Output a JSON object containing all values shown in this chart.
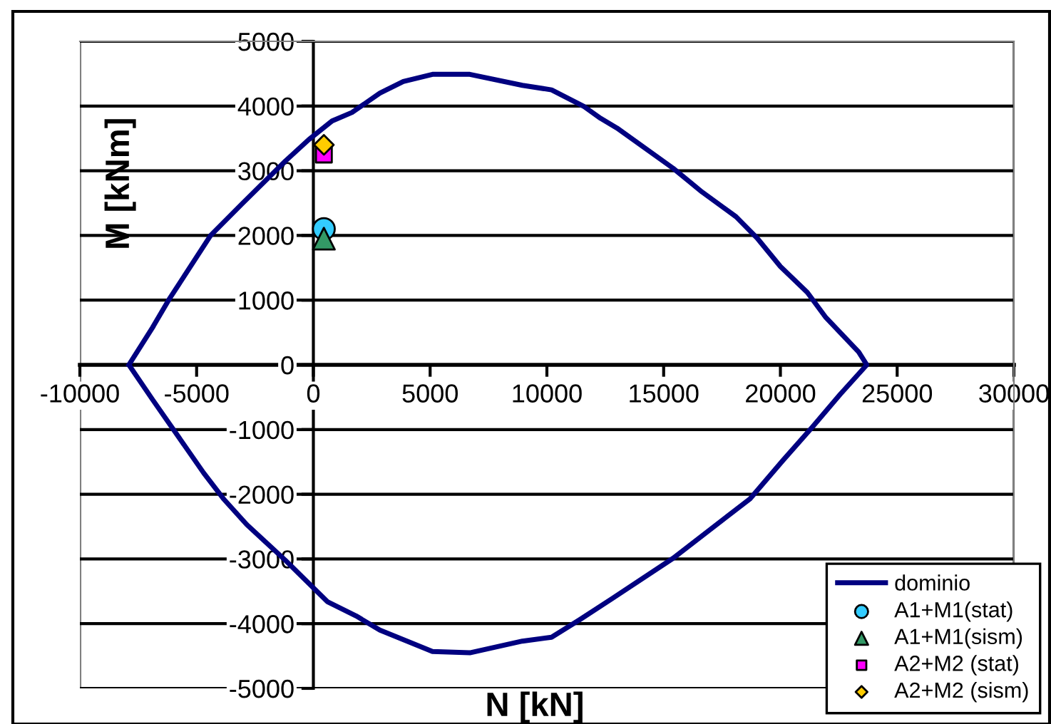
{
  "chart_data": {
    "type": "line",
    "xlabel": "N [kN]",
    "ylabel": "M [kNm]",
    "xlim": [
      -10000,
      30000
    ],
    "xticks": [
      -10000,
      -5000,
      0,
      5000,
      10000,
      15000,
      20000,
      25000,
      30000
    ],
    "ylim": [
      -5000,
      5000
    ],
    "yticks": [
      -5000,
      -4000,
      -3000,
      -2000,
      -1000,
      0,
      1000,
      2000,
      3000,
      4000,
      5000
    ],
    "grid": "y",
    "legend": "bottom right",
    "series": [
      {
        "name": "dominio",
        "color": "#000080",
        "marker": "none",
        "line_style": "solid",
        "x": [
          -7900,
          -6900,
          -6200,
          -4400,
          -3050,
          -1200,
          -200,
          800,
          1650,
          2850,
          3850,
          5100,
          6700,
          8950,
          10200,
          11600,
          12300,
          13000,
          15400,
          16650,
          18100,
          19000,
          20000,
          21150,
          21950,
          23350,
          23700,
          22550,
          21350,
          20100,
          18700,
          15400,
          12800,
          11400,
          10200,
          8950,
          6700,
          5100,
          2850,
          1830,
          600,
          -1200,
          -2850,
          -3850,
          -4700,
          -6900,
          -7900,
          -6900
        ],
        "values": [
          0,
          570,
          1000,
          2000,
          2490,
          3150,
          3480,
          3770,
          3900,
          4200,
          4380,
          4490,
          4490,
          4320,
          4250,
          3990,
          3810,
          3660,
          3040,
          2670,
          2290,
          1960,
          1520,
          1120,
          730,
          200,
          0,
          -460,
          -970,
          -1480,
          -2070,
          -2990,
          -3610,
          -3940,
          -4210,
          -4270,
          -4450,
          -4430,
          -4100,
          -3880,
          -3660,
          -3020,
          -2470,
          -2070,
          -1670,
          -530,
          0,
          570
        ]
      },
      {
        "name": "A1+M1(stat)",
        "type": "scatter",
        "color": "#33ccff",
        "marker": "circle",
        "x": [
          450
        ],
        "values": [
          2100
        ]
      },
      {
        "name": "A1+M1(sism)",
        "type": "scatter",
        "color": "#339966",
        "marker": "triangle",
        "x": [
          450
        ],
        "values": [
          1950
        ]
      },
      {
        "name": "A2+M2 (stat)",
        "type": "scatter",
        "color": "#ff00ff",
        "marker": "square",
        "x": [
          450
        ],
        "values": [
          3250
        ]
      },
      {
        "name": "A2+M2 (sism)",
        "type": "scatter",
        "color": "#ffcc00",
        "marker": "diamond",
        "x": [
          450
        ],
        "values": [
          3400
        ]
      }
    ]
  }
}
